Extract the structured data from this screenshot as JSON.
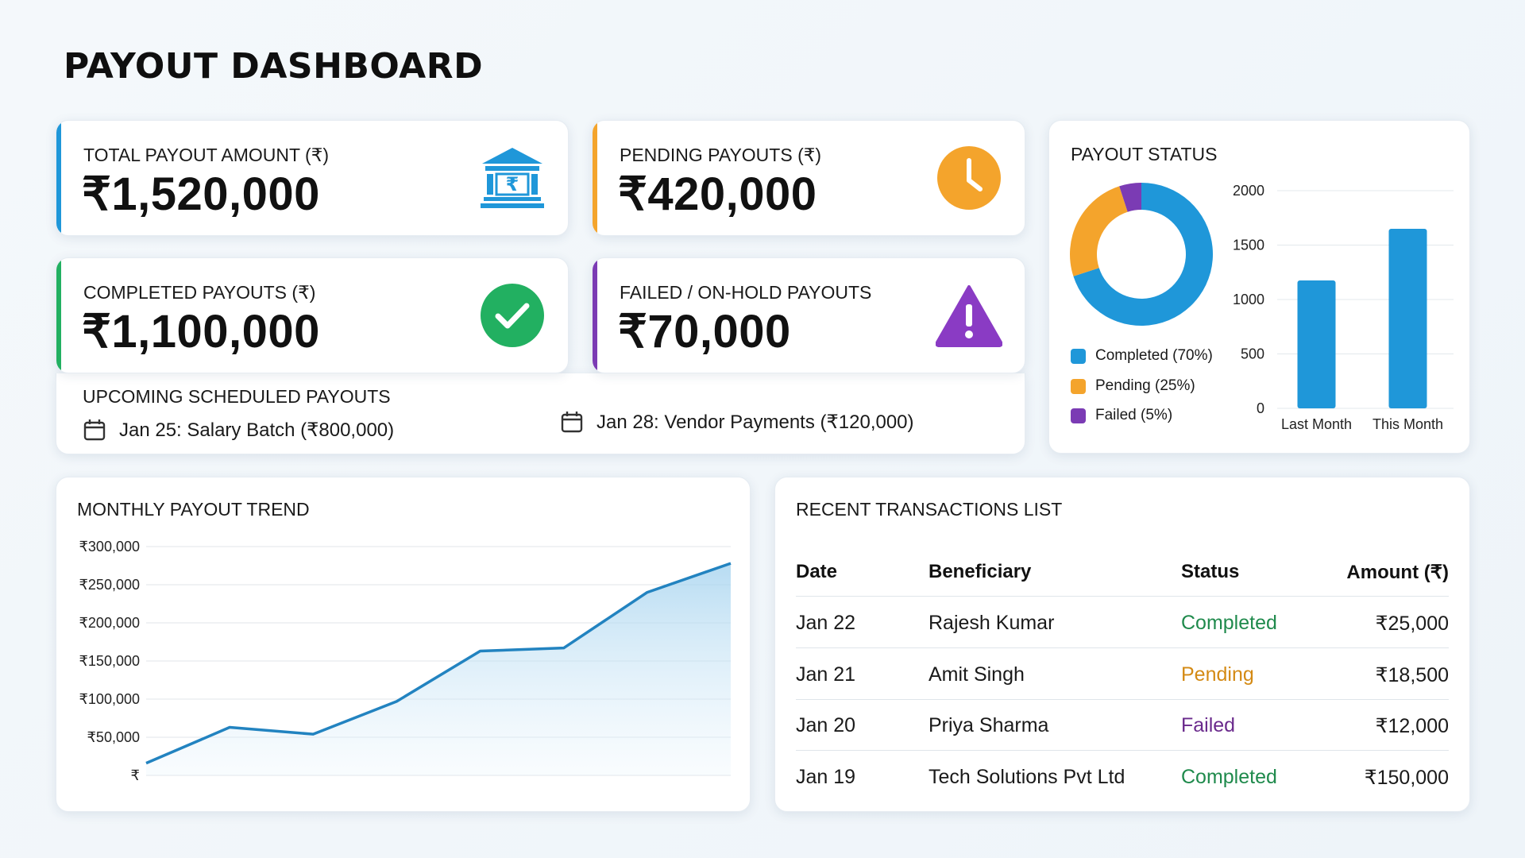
{
  "title": "PAYOUT DASHBOARD",
  "colors": {
    "blue": "#1f97d9",
    "orange": "#f4a42c",
    "green": "#22b061",
    "purple": "#7b3bb4",
    "status_completed": "#1f8a4c",
    "status_pending": "#d48a14",
    "status_failed": "#6a2a8c"
  },
  "kpis": {
    "total": {
      "label": "TOTAL PAYOUT AMOUNT (₹)",
      "value": "₹1,520,000",
      "icon": "bank-rupee-icon"
    },
    "pending": {
      "label": "PENDING PAYOUTS (₹)",
      "value": "₹420,000",
      "icon": "clock-icon"
    },
    "completed": {
      "label": "COMPLETED PAYOUTS (₹)",
      "value": "₹1,100,000",
      "icon": "check-circle-icon"
    },
    "failed": {
      "label": "FAILED / ON-HOLD PAYOUTS",
      "value": "₹70,000",
      "icon": "warning-icon"
    }
  },
  "scheduled": {
    "title": "UPCOMING SCHEDULED PAYOUTS",
    "items": [
      "Jan 25: Salary Batch (₹800,000)",
      "Jan 28: Vendor Payments (₹120,000)"
    ]
  },
  "status_panel": {
    "title": "PAYOUT STATUS",
    "legend": [
      "Completed (70%)",
      "Pending (25%)",
      "Failed (5%)"
    ],
    "bar_ticks": [
      "2000",
      "1500",
      "1000",
      "500",
      "0"
    ],
    "bar_labels": [
      "Last Month",
      "This Month"
    ]
  },
  "trend": {
    "title": "MONTHLY PAYOUT TREND",
    "y_ticks": [
      "₹300,000",
      "₹250,000",
      "₹200,000",
      "₹150,000",
      "₹100,000",
      "₹50,000",
      "₹"
    ]
  },
  "transactions": {
    "title": "RECENT TRANSACTIONS LIST",
    "headers": [
      "Date",
      "Beneficiary",
      "Status",
      "Amount (₹)"
    ],
    "rows": [
      {
        "date": "Jan 22",
        "beneficiary": "Rajesh Kumar",
        "status": "Completed",
        "amount": "₹25,000"
      },
      {
        "date": "Jan 21",
        "beneficiary": "Amit Singh",
        "status": "Pending",
        "amount": "₹18,500"
      },
      {
        "date": "Jan 20",
        "beneficiary": "Priya Sharma",
        "status": "Failed",
        "amount": "₹12,000"
      },
      {
        "date": "Jan 19",
        "beneficiary": "Tech Solutions Pvt Ltd",
        "status": "Completed",
        "amount": "₹150,000"
      }
    ]
  },
  "chart_data": [
    {
      "type": "pie",
      "categories": [
        "Completed",
        "Pending",
        "Failed"
      ],
      "values": [
        70,
        25,
        5
      ],
      "colors": [
        "#1f97d9",
        "#f4a42c",
        "#7b3bb4"
      ],
      "title": "PAYOUT STATUS"
    },
    {
      "type": "bar",
      "categories": [
        "Last Month",
        "This Month"
      ],
      "values": [
        1175,
        1650
      ],
      "ylim": [
        0,
        2000
      ],
      "grid": true
    },
    {
      "type": "area",
      "title": "MONTHLY PAYOUT TREND",
      "values": [
        16000,
        63000,
        54000,
        97000,
        163000,
        167000,
        240000,
        278000
      ],
      "ylim": [
        0,
        300000
      ],
      "grid": true
    }
  ]
}
